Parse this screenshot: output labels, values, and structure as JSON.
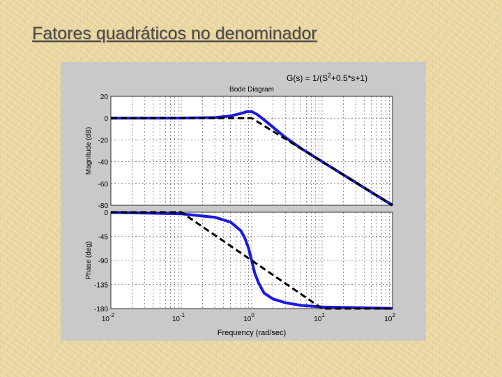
{
  "slide": {
    "title": "Fatores quadráticos no denominador"
  },
  "chart_data": {
    "type": "line",
    "title": "Bode Diagram",
    "annotation": "G(s) = 1/(S²+0.5*s+1)",
    "xlabel": "Frequency  (rad/sec)",
    "xscale": "log",
    "xlim": [
      0.01,
      100
    ],
    "x_ticks": [
      {
        "base": "10",
        "exp": "-2",
        "value": 0.01
      },
      {
        "base": "10",
        "exp": "-1",
        "value": 0.1
      },
      {
        "base": "10",
        "exp": "0",
        "value": 1
      },
      {
        "base": "10",
        "exp": "1",
        "value": 10
      },
      {
        "base": "10",
        "exp": "2",
        "value": 100
      }
    ],
    "grid": true,
    "colors": {
      "exact": "#1a1ae0",
      "asymptote": "#000000"
    },
    "panels": [
      {
        "name": "magnitude",
        "ylabel": "Magnitude (dB)",
        "ylim": [
          -80,
          20
        ],
        "yticks": [
          20,
          0,
          -20,
          -40,
          -60,
          -80
        ],
        "ytick_labels": [
          "20",
          "0",
          "-20",
          "-40",
          "-60",
          "-80"
        ],
        "series": [
          {
            "style": "solid-blue",
            "x": [
              0.01,
              0.1,
              0.3,
              0.5,
              0.7,
              0.85,
              1,
              1.2,
              1.5,
              2,
              3,
              5,
              10,
              20,
              50,
              100
            ],
            "y": [
              0,
              0.04,
              0.5,
              2.0,
              4.2,
              5.9,
              6.0,
              3.3,
              -1.6,
              -8.3,
              -17.7,
              -27.7,
              -39.9,
              -52.0,
              -68.0,
              -80.0
            ]
          },
          {
            "style": "dashed-black",
            "x": [
              0.01,
              1,
              100
            ],
            "y": [
              0,
              0,
              -80
            ]
          }
        ]
      },
      {
        "name": "phase",
        "ylabel": "Phase (deg)",
        "ylim": [
          -180,
          0
        ],
        "yticks": [
          0,
          -45,
          -90,
          -135,
          -180
        ],
        "ytick_labels": [
          "0",
          "-45",
          "-90",
          "-135",
          "-180"
        ],
        "series": [
          {
            "style": "solid-blue",
            "x": [
              0.01,
              0.1,
              0.3,
              0.5,
              0.7,
              0.8,
              0.9,
              1,
              1.1,
              1.25,
              1.5,
              2,
              3,
              5,
              10,
              100
            ],
            "y": [
              -0.3,
              -2.9,
              -9.4,
              -18.4,
              -34.4,
              -48.2,
              -66.8,
              -90,
              -113,
              -132,
              -151,
              -162,
              -169,
              -174,
              -177,
              -179.7
            ]
          },
          {
            "style": "dashed-black",
            "x": [
              0.01,
              0.1,
              10,
              100
            ],
            "y": [
              0,
              0,
              -180,
              -180
            ]
          }
        ]
      }
    ]
  }
}
